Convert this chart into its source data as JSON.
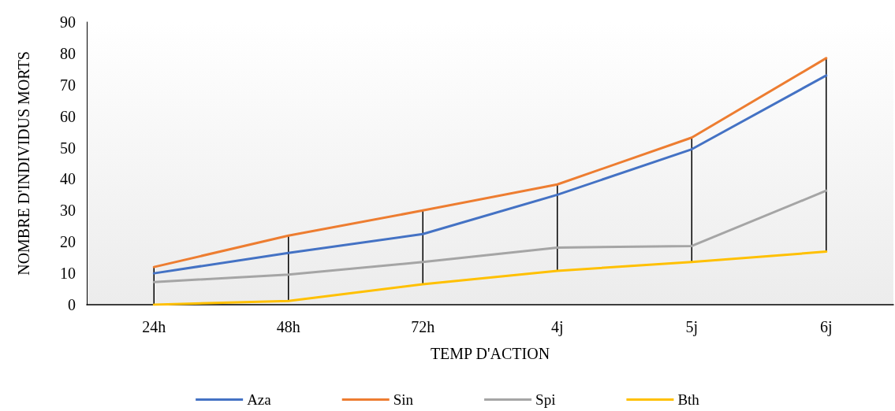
{
  "chart_data": {
    "type": "line",
    "xlabel": "TEMP D'ACTION",
    "ylabel": "NOMBRE D'INDIVIDUS MORTS",
    "categories": [
      "24h",
      "48h",
      "72h",
      "4j",
      "5j",
      "6j"
    ],
    "series": [
      {
        "name": "Aza",
        "color": "#4472c4",
        "values": [
          10,
          16.5,
          22.5,
          35,
          49.5,
          73
        ]
      },
      {
        "name": "Sin",
        "color": "#ed7d31",
        "values": [
          12,
          22,
          30,
          38.3,
          53.2,
          78.5
        ]
      },
      {
        "name": "Spi",
        "color": "#a5a5a5",
        "values": [
          7.2,
          9.6,
          13.6,
          18.2,
          18.7,
          36.3
        ]
      },
      {
        "name": "Bth",
        "color": "#ffc000",
        "values": [
          0,
          1.2,
          6.5,
          10.8,
          13.6,
          16.9
        ]
      },
      {
        "type": "bar",
        "color": "#000000",
        "base": [
          0,
          1.2,
          6.5,
          10.8,
          13.6,
          16.9
        ],
        "values": [
          12,
          20.8,
          23.5,
          27.5,
          39.6,
          61.6
        ]
      }
    ],
    "ylim": [
      0,
      90
    ],
    "yticks": [
      0,
      10,
      20,
      30,
      40,
      50,
      60,
      70,
      80,
      90
    ],
    "grid": false,
    "legend": "bottom",
    "marker": "none",
    "line_style": "solid"
  }
}
